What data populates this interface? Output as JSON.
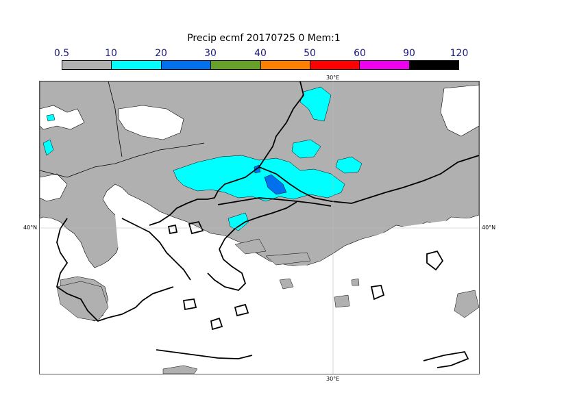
{
  "title": "Precip ecmf 20170725 0 Mem:1",
  "legend": {
    "ticks": [
      "0.5",
      "10",
      "20",
      "30",
      "40",
      "50",
      "60",
      "90",
      "120"
    ],
    "colors": [
      "#b0b0b0",
      "#00ffff",
      "#0070ee",
      "#66a028",
      "#ff8000",
      "#ff0000",
      "#ee00ee",
      "#000000"
    ]
  },
  "map": {
    "lat_label": "40°N",
    "lon_label": "30°E"
  }
}
